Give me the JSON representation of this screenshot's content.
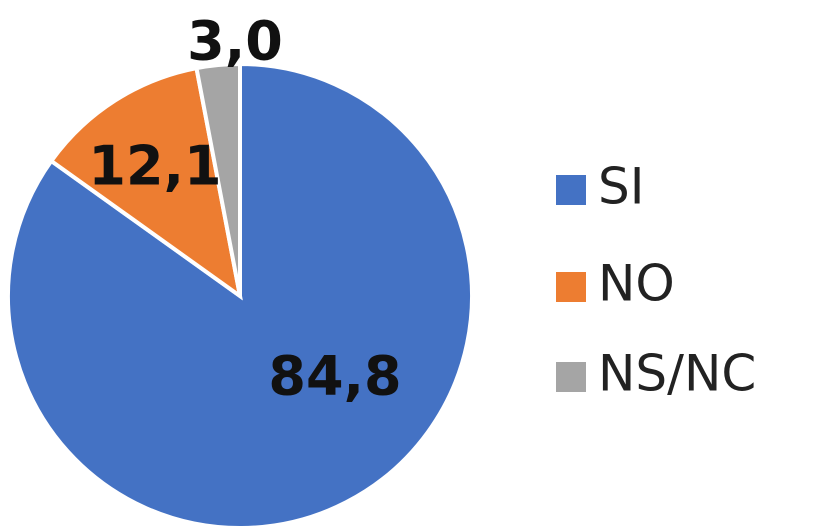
{
  "chart_data": {
    "type": "pie",
    "categories": [
      "SI",
      "NO",
      "NS/NC"
    ],
    "values": [
      84.8,
      12.1,
      3.0
    ],
    "value_labels": [
      "84,8",
      "12,1",
      "3,0"
    ],
    "colors": [
      "#4472c4",
      "#ed7d31",
      "#a5a5a5"
    ],
    "legend": "right"
  }
}
